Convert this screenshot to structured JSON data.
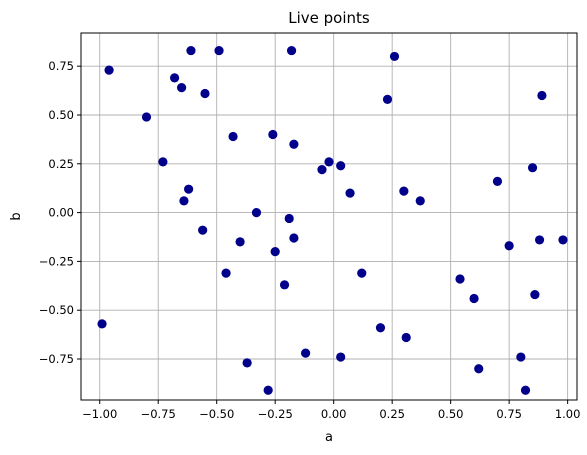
{
  "chart_data": {
    "type": "scatter",
    "title": "Live points",
    "xlabel": "a",
    "ylabel": "b",
    "xlim": [
      -1.08,
      1.04
    ],
    "ylim": [
      -0.96,
      0.92
    ],
    "grid": true,
    "marker_color": "#00008b",
    "xticks": [
      -1.0,
      -0.75,
      -0.5,
      -0.25,
      0.0,
      0.25,
      0.5,
      0.75,
      1.0
    ],
    "xtick_labels": [
      "−1.00",
      "−0.75",
      "−0.50",
      "−0.25",
      "0.00",
      "0.25",
      "0.50",
      "0.75",
      "1.00"
    ],
    "yticks": [
      -0.75,
      -0.5,
      -0.25,
      0.0,
      0.25,
      0.5,
      0.75
    ],
    "ytick_labels": [
      "−0.75",
      "−0.50",
      "−0.25",
      "0.00",
      "0.25",
      "0.50",
      "0.75"
    ],
    "points": [
      {
        "x": -0.96,
        "y": 0.73
      },
      {
        "x": -0.61,
        "y": 0.83
      },
      {
        "x": -0.49,
        "y": 0.83
      },
      {
        "x": -0.18,
        "y": 0.83
      },
      {
        "x": 0.26,
        "y": 0.8
      },
      {
        "x": -0.68,
        "y": 0.69
      },
      {
        "x": -0.65,
        "y": 0.64
      },
      {
        "x": -0.55,
        "y": 0.61
      },
      {
        "x": 0.23,
        "y": 0.58
      },
      {
        "x": 0.89,
        "y": 0.6
      },
      {
        "x": -0.8,
        "y": 0.49
      },
      {
        "x": -0.43,
        "y": 0.39
      },
      {
        "x": -0.26,
        "y": 0.4
      },
      {
        "x": -0.17,
        "y": 0.35
      },
      {
        "x": -0.73,
        "y": 0.26
      },
      {
        "x": -0.02,
        "y": 0.26
      },
      {
        "x": 0.03,
        "y": 0.24
      },
      {
        "x": -0.05,
        "y": 0.22
      },
      {
        "x": 0.85,
        "y": 0.23
      },
      {
        "x": 0.7,
        "y": 0.16
      },
      {
        "x": -0.62,
        "y": 0.12
      },
      {
        "x": 0.07,
        "y": 0.1
      },
      {
        "x": 0.3,
        "y": 0.11
      },
      {
        "x": -0.64,
        "y": 0.06
      },
      {
        "x": 0.37,
        "y": 0.06
      },
      {
        "x": -0.33,
        "y": 0.0
      },
      {
        "x": -0.19,
        "y": -0.03
      },
      {
        "x": -0.56,
        "y": -0.09
      },
      {
        "x": -0.4,
        "y": -0.15
      },
      {
        "x": -0.17,
        "y": -0.13
      },
      {
        "x": 0.88,
        "y": -0.14
      },
      {
        "x": 0.98,
        "y": -0.14
      },
      {
        "x": 0.75,
        "y": -0.17
      },
      {
        "x": -0.25,
        "y": -0.2
      },
      {
        "x": -0.46,
        "y": -0.31
      },
      {
        "x": 0.12,
        "y": -0.31
      },
      {
        "x": 0.54,
        "y": -0.34
      },
      {
        "x": -0.21,
        "y": -0.37
      },
      {
        "x": 0.6,
        "y": -0.44
      },
      {
        "x": 0.86,
        "y": -0.42
      },
      {
        "x": -0.99,
        "y": -0.57
      },
      {
        "x": 0.2,
        "y": -0.59
      },
      {
        "x": 0.31,
        "y": -0.64
      },
      {
        "x": -0.12,
        "y": -0.72
      },
      {
        "x": 0.03,
        "y": -0.74
      },
      {
        "x": 0.8,
        "y": -0.74
      },
      {
        "x": -0.37,
        "y": -0.77
      },
      {
        "x": 0.62,
        "y": -0.8
      },
      {
        "x": -0.28,
        "y": -0.91
      },
      {
        "x": 0.82,
        "y": -0.91
      }
    ]
  }
}
